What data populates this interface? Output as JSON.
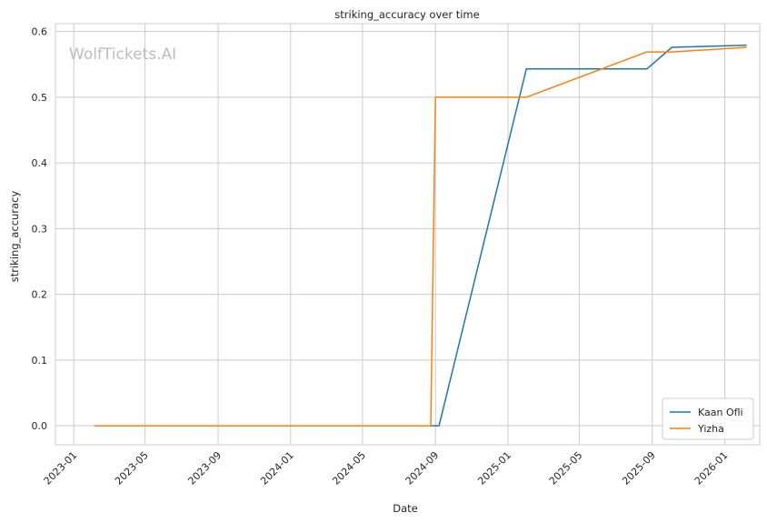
{
  "chart_data": {
    "type": "line",
    "title": "striking_accuracy over time",
    "xlabel": "Date",
    "ylabel": "striking_accuracy",
    "watermark": "WolfTickets.AI",
    "xlim": [
      "2022-12-01",
      "2026-03-01"
    ],
    "ylim": [
      -0.029,
      0.612
    ],
    "x_ticks": [
      "2023-01",
      "2023-05",
      "2023-09",
      "2024-01",
      "2024-05",
      "2024-09",
      "2025-01",
      "2025-05",
      "2025-09",
      "2026-01"
    ],
    "y_ticks": [
      "0.0",
      "0.1",
      "0.2",
      "0.3",
      "0.4",
      "0.5",
      "0.6"
    ],
    "grid": true,
    "legend_position": "bottom-right",
    "series": [
      {
        "name": "Kaan Ofli",
        "color": "#1f77b4",
        "x": [
          "2024-08-24",
          "2024-09-07",
          "2025-02-01",
          "2025-08-23",
          "2025-10-04",
          "2026-02-07"
        ],
        "y": [
          0.0,
          0.0,
          0.543,
          0.543,
          0.576,
          0.579
        ]
      },
      {
        "name": "Yizha",
        "color": "#ff7f0e",
        "x": [
          "2023-02-04",
          "2024-08-24",
          "2024-09-01",
          "2025-02-01",
          "2025-08-23",
          "2025-10-04",
          "2026-02-07"
        ],
        "y": [
          0.0,
          0.0,
          0.5,
          0.5,
          0.569,
          0.569,
          0.576
        ]
      }
    ]
  }
}
